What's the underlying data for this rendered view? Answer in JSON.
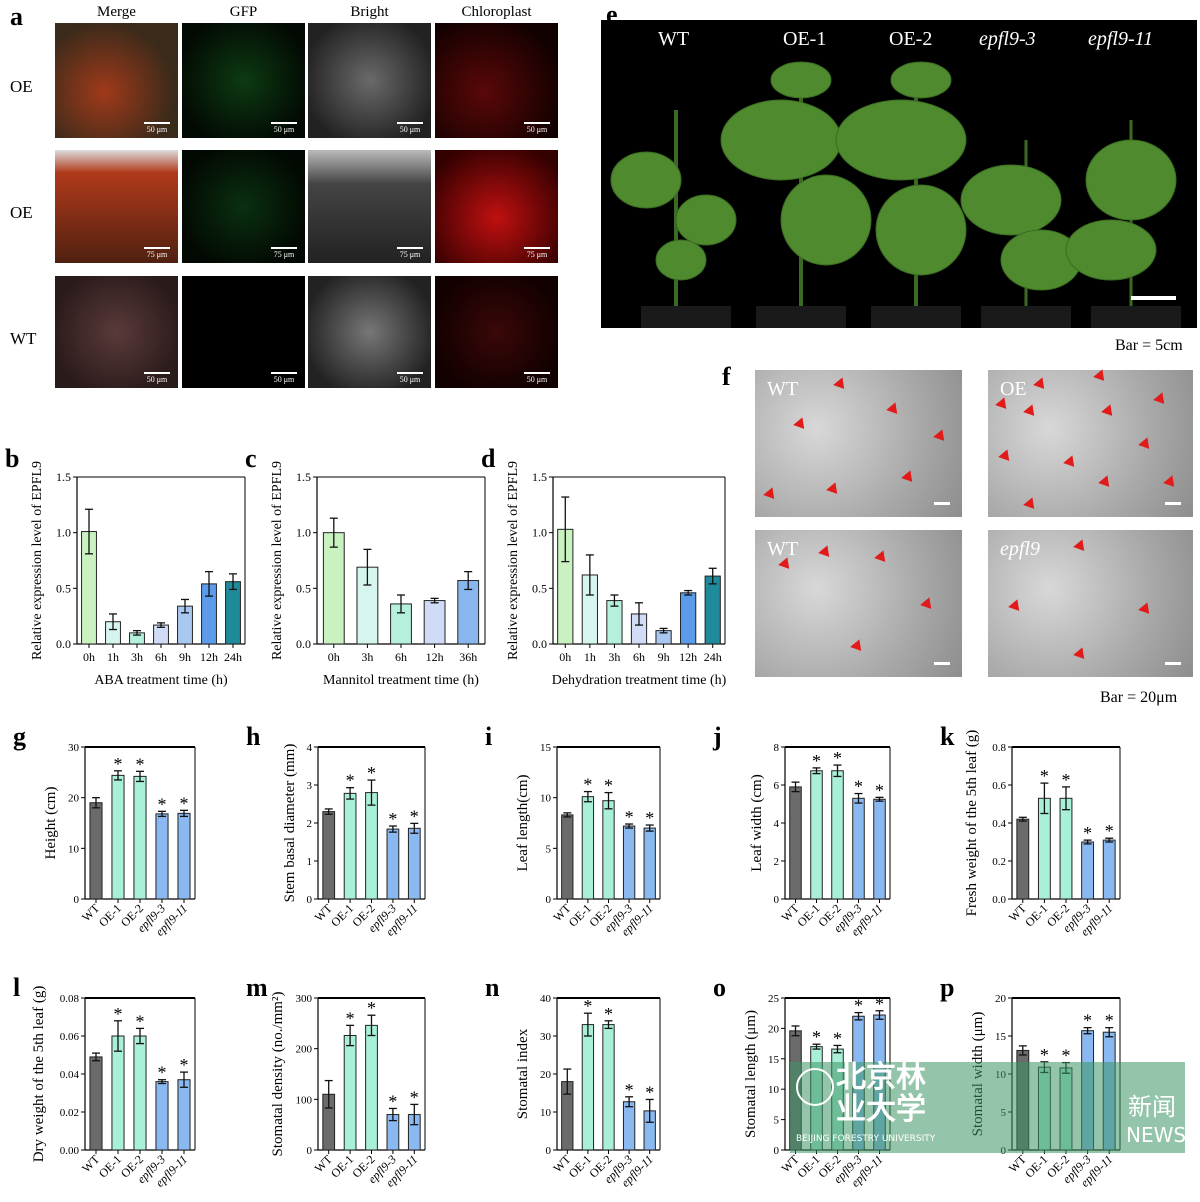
{
  "panels": {
    "a": "a",
    "b": "b",
    "c": "c",
    "d": "d",
    "e": "e",
    "f": "f"
  },
  "panel_a": {
    "columns": [
      "Merge",
      "GFP",
      "Bright",
      "Chloroplast"
    ],
    "rows": [
      {
        "label": "OE",
        "scale": "50 μm"
      },
      {
        "label": "OE",
        "scale": "75 μm"
      },
      {
        "label": "WT",
        "scale": "50 μm"
      }
    ]
  },
  "panel_e": {
    "labels": [
      "WT",
      "OE-1",
      "OE-2",
      "epfl9-3",
      "epfl9-11"
    ],
    "bar_caption": "Bar = 5cm"
  },
  "panel_f": {
    "labels": [
      "WT",
      "OE",
      "WT",
      "epfl9"
    ],
    "bar_caption": "Bar = 20μm",
    "arrow_color": "#e21a1a"
  },
  "watermark": {
    "cn": "北京林业大学",
    "news_cn": "新闻",
    "news_en": "NEWS",
    "en": "BEIJING FORESTRY UNIVERSITY"
  },
  "colors": {
    "wt": "#6b6b6b",
    "oe": "#a8f0d8",
    "epfl9": "#8ab8f0"
  },
  "chart_data": [
    {
      "id": "b",
      "type": "bar",
      "ylabel": "Relative expression level of EPFL9",
      "xlabel": "ABA treatment time (h)",
      "ylim": [
        0,
        1.5
      ],
      "yticks": [
        "0.0",
        "0.5",
        "1.0",
        "1.5"
      ],
      "categories": [
        "0h",
        "1h",
        "3h",
        "6h",
        "9h",
        "12h",
        "24h"
      ],
      "values": [
        1.01,
        0.2,
        0.1,
        0.17,
        0.34,
        0.54,
        0.56
      ],
      "errors": [
        0.2,
        0.07,
        0.02,
        0.02,
        0.06,
        0.11,
        0.07
      ],
      "bar_colors": [
        "#c9f2c0",
        "#d6f5ee",
        "#b5f0dc",
        "#d0dcf5",
        "#a9c8f0",
        "#5b9bea",
        "#1f8a99"
      ]
    },
    {
      "id": "c",
      "type": "bar",
      "ylabel": "Relative expression level of EPFL9",
      "xlabel": "Mannitol treatment time (h)",
      "ylim": [
        0,
        1.5
      ],
      "yticks": [
        "0.0",
        "0.5",
        "1.0",
        "1.5"
      ],
      "categories": [
        "0h",
        "3h",
        "6h",
        "12h",
        "36h"
      ],
      "values": [
        1.0,
        0.69,
        0.36,
        0.39,
        0.57
      ],
      "errors": [
        0.13,
        0.16,
        0.08,
        0.02,
        0.08
      ],
      "bar_colors": [
        "#c9f2c0",
        "#d6f5ee",
        "#b5f0dc",
        "#d0dcf5",
        "#8ab6f0"
      ]
    },
    {
      "id": "d",
      "type": "bar",
      "ylabel": "Relative expression level of EPFL9",
      "xlabel": "Dehydration treatment time (h)",
      "ylim": [
        0,
        1.5
      ],
      "yticks": [
        "0.0",
        "0.5",
        "1.0",
        "1.5"
      ],
      "categories": [
        "0h",
        "1h",
        "3h",
        "6h",
        "9h",
        "12h",
        "24h"
      ],
      "values": [
        1.03,
        0.62,
        0.39,
        0.27,
        0.12,
        0.46,
        0.61
      ],
      "errors": [
        0.29,
        0.18,
        0.05,
        0.1,
        0.02,
        0.02,
        0.07
      ],
      "bar_colors": [
        "#c9f2c0",
        "#d6f5ee",
        "#b5f0dc",
        "#d0dcf5",
        "#a9c8f0",
        "#5b9bea",
        "#1f8a99"
      ]
    },
    {
      "id": "g",
      "type": "bar",
      "ylabel": "Height (cm)",
      "ylim": [
        0,
        30
      ],
      "yticks": [
        "0",
        "10",
        "20",
        "30"
      ],
      "categories": [
        "WT",
        "OE-1",
        "OE-2",
        "epfl9-3",
        "epfl9-11"
      ],
      "values": [
        19,
        24.4,
        24.2,
        16.8,
        16.9
      ],
      "errors": [
        1,
        0.9,
        1,
        0.5,
        0.6
      ],
      "significant": [
        false,
        true,
        true,
        true,
        true
      ]
    },
    {
      "id": "h",
      "type": "bar",
      "ylabel": "Stem basal diameter (mm)",
      "ylim": [
        0,
        4
      ],
      "yticks": [
        "0",
        "1",
        "2",
        "3",
        "4"
      ],
      "categories": [
        "WT",
        "OE-1",
        "OE-2",
        "epfl9-3",
        "epfl9-11"
      ],
      "values": [
        2.3,
        2.78,
        2.8,
        1.84,
        1.86
      ],
      "errors": [
        0.07,
        0.15,
        0.33,
        0.08,
        0.13
      ],
      "significant": [
        false,
        true,
        true,
        true,
        true
      ]
    },
    {
      "id": "i",
      "type": "bar",
      "ylabel": "Leaf length(cm)",
      "ylim": [
        0,
        15
      ],
      "yticks": [
        "0",
        "5",
        "10",
        "15"
      ],
      "categories": [
        "WT",
        "OE-1",
        "OE-2",
        "epfl9-3",
        "epfl9-11"
      ],
      "values": [
        8.3,
        10.1,
        9.7,
        7.2,
        7.0
      ],
      "errors": [
        0.2,
        0.5,
        0.8,
        0.2,
        0.3
      ],
      "significant": [
        false,
        true,
        true,
        true,
        true
      ]
    },
    {
      "id": "j",
      "type": "bar",
      "ylabel": "Leaf width (cm)",
      "ylim": [
        0,
        8
      ],
      "yticks": [
        "0",
        "2",
        "4",
        "6",
        "8"
      ],
      "categories": [
        "WT",
        "OE-1",
        "OE-2",
        "epfl9-3",
        "epfl9-11"
      ],
      "values": [
        5.9,
        6.75,
        6.75,
        5.3,
        5.25
      ],
      "errors": [
        0.25,
        0.15,
        0.3,
        0.25,
        0.1
      ],
      "significant": [
        false,
        true,
        true,
        true,
        true
      ]
    },
    {
      "id": "k",
      "type": "bar",
      "ylabel": "Fresh weight of the 5th leaf (g)",
      "ylim": [
        0,
        0.8
      ],
      "yticks": [
        "0.0",
        "0.2",
        "0.4",
        "0.6",
        "0.8"
      ],
      "categories": [
        "WT",
        "OE-1",
        "OE-2",
        "epfl9-3",
        "epfl9-11"
      ],
      "values": [
        0.42,
        0.53,
        0.53,
        0.3,
        0.31
      ],
      "errors": [
        0.01,
        0.08,
        0.06,
        0.01,
        0.01
      ],
      "significant": [
        false,
        true,
        true,
        true,
        true
      ]
    },
    {
      "id": "l",
      "type": "bar",
      "ylabel": "Dry weight of the 5th leaf (g)",
      "ylim": [
        0,
        0.08
      ],
      "yticks": [
        "0.00",
        "0.02",
        "0.04",
        "0.06",
        "0.08"
      ],
      "categories": [
        "WT",
        "OE-1",
        "OE-2",
        "epfl9-3",
        "epfl9-11"
      ],
      "values": [
        0.049,
        0.06,
        0.06,
        0.036,
        0.037
      ],
      "errors": [
        0.002,
        0.008,
        0.004,
        0.001,
        0.004
      ],
      "significant": [
        false,
        true,
        true,
        true,
        true
      ]
    },
    {
      "id": "m",
      "type": "bar",
      "ylabel": "Stomatal density  (no./mm²)",
      "ylim": [
        0,
        300
      ],
      "yticks": [
        "0",
        "100",
        "200",
        "300"
      ],
      "categories": [
        "WT",
        "OE-1",
        "OE-2",
        "epfl9-3",
        "epfl9-11"
      ],
      "values": [
        110,
        226,
        246,
        70,
        70
      ],
      "errors": [
        27,
        20,
        20,
        12,
        20
      ],
      "significant": [
        false,
        true,
        true,
        true,
        true
      ]
    },
    {
      "id": "n",
      "type": "bar",
      "ylabel": "Stomatal index",
      "ylim": [
        0,
        40
      ],
      "yticks": [
        "0",
        "10",
        "20",
        "30",
        "40"
      ],
      "categories": [
        "WT",
        "OE-1",
        "OE-2",
        "epfl9-3",
        "epfl9-11"
      ],
      "values": [
        18,
        33,
        33,
        12.7,
        10.3
      ],
      "errors": [
        3.3,
        3,
        1,
        1.3,
        3
      ],
      "significant": [
        false,
        true,
        true,
        true,
        true
      ]
    },
    {
      "id": "o",
      "type": "bar",
      "ylabel": "Stomatal length (μm)",
      "ylim": [
        0,
        25
      ],
      "yticks": [
        "0",
        "5",
        "10",
        "15",
        "20",
        "25"
      ],
      "categories": [
        "WT",
        "OE-1",
        "OE-2",
        "epfl9-3",
        "epfl9-11"
      ],
      "values": [
        19.6,
        17,
        16.6,
        22,
        22.2
      ],
      "errors": [
        0.8,
        0.4,
        0.6,
        0.6,
        0.7
      ],
      "significant": [
        false,
        true,
        true,
        true,
        true
      ]
    },
    {
      "id": "p",
      "type": "bar",
      "ylabel": "Stomatal width (μm)",
      "ylim": [
        0,
        20
      ],
      "yticks": [
        "0",
        "5",
        "10",
        "15",
        "20"
      ],
      "categories": [
        "WT",
        "OE-1",
        "OE-2",
        "epfl9-3",
        "epfl9-11"
      ],
      "values": [
        13.1,
        10.9,
        10.8,
        15.7,
        15.5
      ],
      "errors": [
        0.6,
        0.7,
        0.7,
        0.4,
        0.6
      ],
      "significant": [
        false,
        true,
        true,
        true,
        true
      ]
    }
  ]
}
